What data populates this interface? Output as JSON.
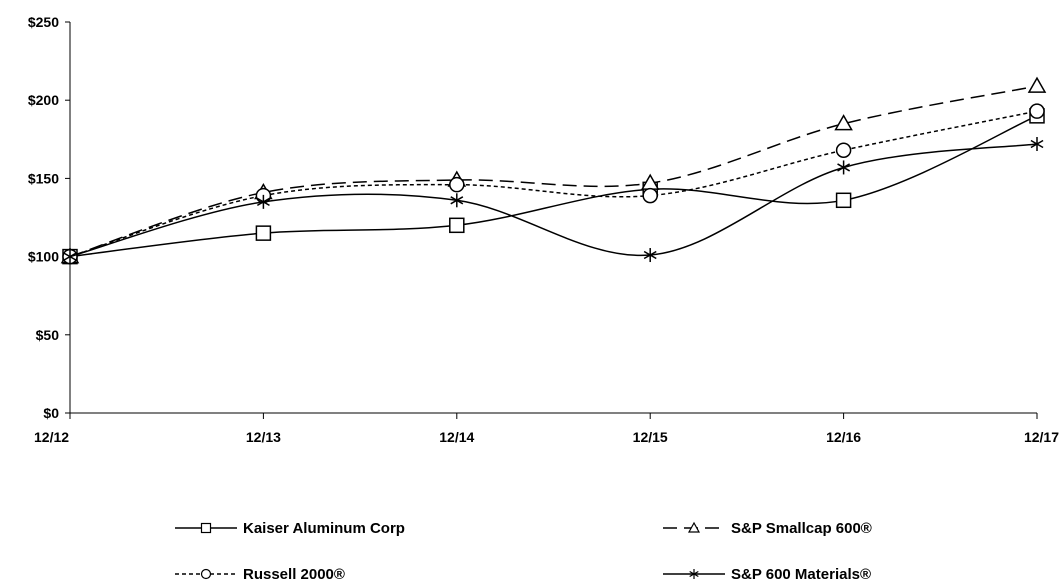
{
  "chart_data": {
    "type": "line",
    "categories": [
      "12/12",
      "12/13",
      "12/14",
      "12/15",
      "12/16",
      "12/17"
    ],
    "ylim": [
      0,
      250
    ],
    "yticks": [
      0,
      50,
      100,
      150,
      200,
      250
    ],
    "ytick_labels": [
      "$0",
      "$50",
      "$100",
      "$150",
      "$200",
      "$250"
    ],
    "grid": false,
    "legend_position": "bottom",
    "series": [
      {
        "name": "Kaiser Aluminum Corp",
        "values": [
          100,
          115,
          120,
          143,
          136,
          190
        ],
        "marker": "square",
        "dash": "solid"
      },
      {
        "name": "S&P Smallcap 600®",
        "values": [
          100,
          141,
          149,
          147,
          185,
          209
        ],
        "marker": "triangle",
        "dash": "longdash"
      },
      {
        "name": "Russell 2000®",
        "values": [
          100,
          139,
          146,
          139,
          168,
          193
        ],
        "marker": "circle",
        "dash": "shortdash"
      },
      {
        "name": "S&P 600 Materials®",
        "values": [
          100,
          135,
          136,
          101,
          157,
          172
        ],
        "marker": "star",
        "dash": "solid"
      }
    ]
  },
  "colors": {
    "line": "#000000",
    "background": "#ffffff"
  }
}
